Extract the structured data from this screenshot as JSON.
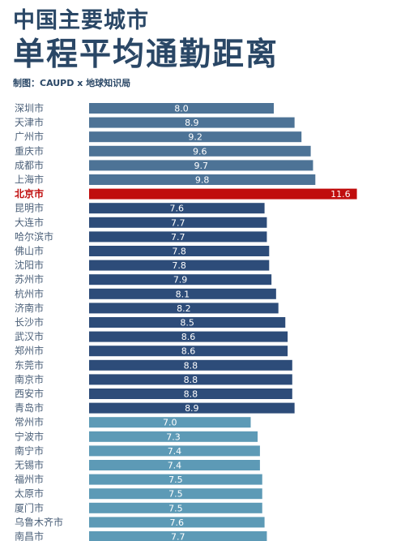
{
  "header": {
    "title_line1": "中国主要城市",
    "title_line2": "单程平均通勤距离",
    "credit": "制图：CAUPD x 地球知识局"
  },
  "colors": {
    "group1": "#4d7396",
    "highlight": "#c00d0d",
    "group2": "#2d4c79",
    "group3": "#5d9ab6",
    "title": "#2a4766"
  },
  "chart_data": {
    "type": "bar",
    "orientation": "horizontal",
    "title": "中国主要城市 单程平均通勤距离",
    "xlim": [
      0,
      13
    ],
    "highlight_category": "北京市",
    "categories": [
      "深圳市",
      "天津市",
      "广州市",
      "重庆市",
      "成都市",
      "上海市",
      "北京市",
      "昆明市",
      "大连市",
      "哈尔滨市",
      "佛山市",
      "沈阳市",
      "苏州市",
      "杭州市",
      "济南市",
      "长沙市",
      "武汉市",
      "郑州市",
      "东莞市",
      "南京市",
      "西安市",
      "青岛市",
      "常州市",
      "宁波市",
      "南宁市",
      "无锡市",
      "福州市",
      "太原市",
      "厦门市",
      "乌鲁木齐市",
      "南昌市"
    ],
    "values": [
      8.0,
      8.9,
      9.2,
      9.6,
      9.7,
      9.8,
      11.6,
      7.6,
      7.7,
      7.7,
      7.8,
      7.8,
      7.9,
      8.1,
      8.2,
      8.5,
      8.6,
      8.6,
      8.8,
      8.8,
      8.8,
      8.9,
      7.0,
      7.3,
      7.4,
      7.4,
      7.5,
      7.5,
      7.5,
      7.6,
      7.7
    ],
    "value_labels": [
      "8.0",
      "8.9",
      "9.2",
      "9.6",
      "9.7",
      "9.8",
      "11.6",
      "7.6",
      "7.7",
      "7.7",
      "7.8",
      "7.8",
      "7.9",
      "8.1",
      "8.2",
      "8.5",
      "8.6",
      "8.6",
      "8.8",
      "8.8",
      "8.8",
      "8.9",
      "7.0",
      "7.3",
      "7.4",
      "7.4",
      "7.5",
      "7.5",
      "7.5",
      "7.6",
      "7.7"
    ],
    "groups": [
      "group1",
      "group1",
      "group1",
      "group1",
      "group1",
      "group1",
      "highlight",
      "group2",
      "group2",
      "group2",
      "group2",
      "group2",
      "group2",
      "group2",
      "group2",
      "group2",
      "group2",
      "group2",
      "group2",
      "group2",
      "group2",
      "group2",
      "group3",
      "group3",
      "group3",
      "group3",
      "group3",
      "group3",
      "group3",
      "group3",
      "group3"
    ]
  }
}
